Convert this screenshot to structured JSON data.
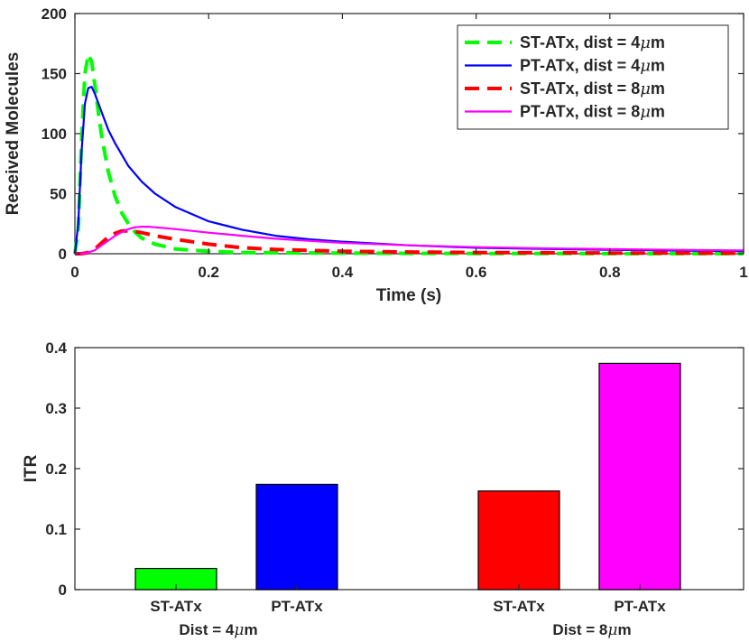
{
  "chart_data": [
    {
      "type": "line",
      "xlabel": "Time (s)",
      "ylabel": "Received Molecules",
      "xlim": [
        0,
        1
      ],
      "ylim": [
        0,
        200
      ],
      "xticks": [
        0,
        0.2,
        0.4,
        0.6,
        0.8,
        1
      ],
      "xtick_labels": [
        "0",
        "0.2",
        "0.4",
        "0.6",
        "0.8",
        "1"
      ],
      "yticks": [
        0,
        50,
        100,
        150,
        200
      ],
      "ytick_labels": [
        "0",
        "50",
        "100",
        "150",
        "200"
      ],
      "grid": false,
      "legend_position": "top-right",
      "series": [
        {
          "name": "ST-ATx, dist = 4",
          "unit": "μm",
          "color": "#00ff00",
          "dash": "dashed",
          "x": [
            0,
            0.005,
            0.01,
            0.015,
            0.02,
            0.025,
            0.03,
            0.035,
            0.04,
            0.05,
            0.06,
            0.07,
            0.08,
            0.09,
            0.1,
            0.12,
            0.15,
            0.2,
            0.25,
            0.3,
            0.4,
            0.5,
            0.6,
            0.7,
            0.8,
            0.9,
            1.0
          ],
          "y": [
            0,
            20,
            95,
            150,
            166,
            160,
            140,
            118,
            98,
            68,
            48,
            34,
            25,
            18,
            13,
            8,
            4,
            2,
            1,
            0.8,
            0.5,
            0.3,
            0.2,
            0.2,
            0.1,
            0.1,
            0.1
          ]
        },
        {
          "name": "PT-ATx, dist = 4",
          "unit": "μm",
          "color": "#0000ff",
          "dash": "solid",
          "x": [
            0,
            0.005,
            0.01,
            0.015,
            0.02,
            0.025,
            0.03,
            0.04,
            0.05,
            0.06,
            0.08,
            0.1,
            0.12,
            0.15,
            0.2,
            0.25,
            0.3,
            0.35,
            0.4,
            0.5,
            0.6,
            0.7,
            0.8,
            0.9,
            1.0
          ],
          "y": [
            0,
            25,
            85,
            125,
            138,
            139,
            133,
            118,
            103,
            92,
            73,
            60,
            50,
            39,
            27,
            20,
            15,
            12,
            10,
            7,
            5,
            4,
            3.2,
            2.6,
            2.2
          ]
        },
        {
          "name": "ST-ATx, dist = 8",
          "unit": "μm",
          "color": "#ff0000",
          "dash": "dashed",
          "x": [
            0,
            0.01,
            0.02,
            0.03,
            0.04,
            0.05,
            0.06,
            0.07,
            0.08,
            0.09,
            0.1,
            0.12,
            0.15,
            0.2,
            0.25,
            0.3,
            0.4,
            0.5,
            0.6,
            0.7,
            0.8,
            0.9,
            1.0
          ],
          "y": [
            0,
            0,
            1,
            4,
            9,
            14,
            17,
            19,
            19,
            18.5,
            17.5,
            15,
            12,
            8,
            5,
            3.5,
            2,
            1.4,
            1,
            0.8,
            0.6,
            0.5,
            0.4
          ]
        },
        {
          "name": "PT-ATx, dist = 8",
          "unit": "μm",
          "color": "#ff00ff",
          "dash": "solid",
          "x": [
            0,
            0.01,
            0.02,
            0.03,
            0.04,
            0.05,
            0.06,
            0.07,
            0.08,
            0.09,
            0.1,
            0.11,
            0.12,
            0.15,
            0.2,
            0.25,
            0.3,
            0.4,
            0.5,
            0.6,
            0.7,
            0.8,
            0.9,
            1.0
          ],
          "y": [
            0,
            0,
            1,
            3,
            7,
            11,
            15,
            18,
            20.5,
            22,
            22.5,
            22.5,
            22,
            20.5,
            17.5,
            15,
            12.5,
            9,
            7,
            5.5,
            4.5,
            3.8,
            3.2,
            2.8
          ]
        }
      ]
    },
    {
      "type": "bar",
      "xlabel": "",
      "ylabel": "ITR",
      "ylim": [
        0,
        0.4
      ],
      "yticks": [
        0,
        0.1,
        0.2,
        0.3,
        0.4
      ],
      "ytick_labels": [
        "0",
        "0.1",
        "0.2",
        "0.3",
        "0.4"
      ],
      "grid": false,
      "groups": [
        {
          "label": "Dist = 4",
          "unit": "μm",
          "bars": [
            {
              "category": "ST-ATx",
              "value": 0.035,
              "color": "#00ff00"
            },
            {
              "category": "PT-ATx",
              "value": 0.174,
              "color": "#0000ff"
            }
          ]
        },
        {
          "label": "Dist = 8",
          "unit": "μm",
          "bars": [
            {
              "category": "ST-ATx",
              "value": 0.163,
              "color": "#ff0000"
            },
            {
              "category": "PT-ATx",
              "value": 0.374,
              "color": "#ff00ff"
            }
          ]
        }
      ]
    }
  ]
}
